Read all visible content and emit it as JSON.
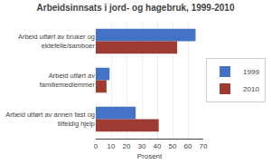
{
  "chart_data": {
    "type": "bar",
    "orientation": "horizontal",
    "title": "Arbeidsinnsats i jord- og hagebruk, 1999-2010",
    "categories": [
      "Arbeid utført av bruker og\nektefelle/samboer",
      "Arbeid utført av\nfamiliemedlemmer",
      "Arbeid utført av annen fast og\ntilfeldig hjelp"
    ],
    "series": [
      {
        "name": "1999",
        "color": "#4472C4",
        "values": [
          65,
          9,
          26
        ]
      },
      {
        "name": "2010",
        "color": "#9E3B33",
        "values": [
          53,
          7,
          41
        ]
      }
    ],
    "xlabel": "Prosent",
    "xlim": [
      0,
      70
    ],
    "xticks": [
      0,
      10,
      20,
      30,
      40,
      50,
      60,
      70
    ],
    "grid": true,
    "legend": "right"
  }
}
